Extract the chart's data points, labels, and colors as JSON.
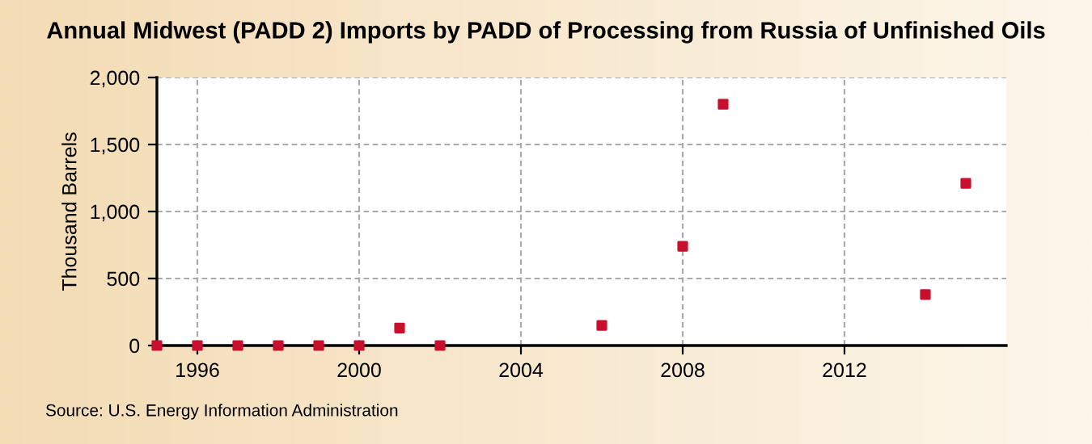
{
  "chart_data": {
    "type": "scatter",
    "title": "Annual Midwest (PADD 2) Imports by PADD of Processing from Russia of Unfinished Oils",
    "ylabel": "Thousand Barrels",
    "x": [
      1995,
      1996,
      1997,
      1998,
      1999,
      2000,
      2001,
      2002,
      2006,
      2008,
      2009,
      2014,
      2015
    ],
    "series": [
      {
        "color": "#c8102e",
        "values": [
          0,
          0,
          0,
          0,
          0,
          0,
          130,
          0,
          150,
          740,
          1800,
          380,
          1210
        ]
      }
    ],
    "xlim": [
      1995,
      2016
    ],
    "xticks": [
      1996,
      2000,
      2004,
      2008,
      2012
    ],
    "ylim": [
      0,
      2000
    ],
    "yticks": [
      {
        "value": 0,
        "label": "0"
      },
      {
        "value": 500,
        "label": "500"
      },
      {
        "value": 1000,
        "label": "1,000"
      },
      {
        "value": 1500,
        "label": "1,500"
      },
      {
        "value": 2000,
        "label": "2,000"
      }
    ],
    "grid": true,
    "marker": "square",
    "legend": false,
    "annotations": [
      "Source: U.S. Energy Information Administration"
    ]
  }
}
